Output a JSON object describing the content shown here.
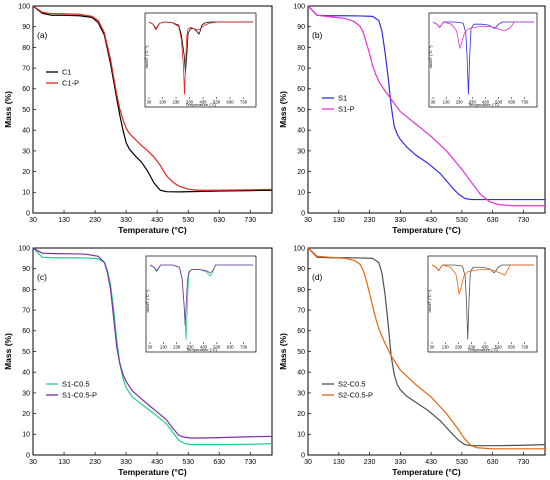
{
  "chart_data": [
    {
      "type": "line",
      "panel_label": "(a)",
      "xlabel": "Temperature (°C)",
      "ylabel": "Mass (%)",
      "xlim": [
        30,
        800
      ],
      "ylim": [
        0,
        100
      ],
      "xticks": [
        30,
        130,
        230,
        330,
        430,
        530,
        630,
        730
      ],
      "yticks": [
        0,
        10,
        20,
        30,
        40,
        50,
        60,
        70,
        80,
        90,
        100
      ],
      "legend_position": "center-left",
      "series": [
        {
          "name": "C1",
          "color": "#000000",
          "x": [
            30,
            60,
            90,
            130,
            180,
            220,
            240,
            260,
            280,
            300,
            310,
            320,
            330,
            340,
            360,
            380,
            400,
            420,
            440,
            460,
            500,
            560,
            630,
            730,
            800
          ],
          "y": [
            100,
            96.5,
            95.5,
            95.5,
            95.3,
            94.5,
            92,
            86,
            72,
            55,
            47,
            40,
            34,
            31,
            27.5,
            24.5,
            20,
            14.5,
            11,
            10.3,
            10.2,
            10.4,
            10.6,
            10.8,
            11
          ]
        },
        {
          "name": "C1-P",
          "color": "#e8231c",
          "x": [
            30,
            60,
            90,
            130,
            180,
            220,
            240,
            260,
            280,
            300,
            310,
            320,
            330,
            340,
            360,
            380,
            400,
            420,
            440,
            460,
            480,
            500,
            530,
            560,
            630,
            730,
            800
          ],
          "y": [
            100,
            97,
            96.3,
            96.2,
            96,
            95,
            93,
            87,
            74,
            57,
            50,
            45,
            41,
            38.5,
            35.5,
            32.5,
            30,
            27,
            23,
            18,
            15,
            13,
            11.5,
            11,
            11,
            11.2,
            11.4
          ]
        }
      ],
      "inset": {
        "xlabel": "Temperature (°C)",
        "ylabel": "dm/dT (°C⁻¹)",
        "xlim": [
          30,
          800
        ],
        "xticks": [
          30,
          130,
          230,
          330,
          430,
          530,
          630,
          730
        ],
        "series": [
          {
            "name": "C1",
            "color": "#000000",
            "x": [
              30,
              60,
              80,
              110,
              150,
              200,
              250,
              270,
              290,
              300,
              310,
              320,
              340,
              360,
              380,
              400,
              410,
              420,
              440,
              480,
              560,
              800
            ],
            "y": [
              0,
              -0.1,
              -0.3,
              -0.05,
              0,
              -0.03,
              -0.15,
              -0.6,
              -1.5,
              -2.3,
              -1.5,
              -0.5,
              -0.3,
              -0.3,
              -0.4,
              -0.55,
              -0.4,
              -0.15,
              -0.05,
              0,
              0,
              0
            ]
          },
          {
            "name": "C1-P",
            "color": "#e8231c",
            "x": [
              30,
              60,
              80,
              110,
              150,
              200,
              250,
              270,
              285,
              293,
              300,
              310,
              320,
              340,
              360,
              380,
              400,
              420,
              440,
              480,
              540,
              800
            ],
            "y": [
              0,
              -0.1,
              -0.35,
              -0.05,
              0,
              -0.03,
              -0.2,
              -0.8,
              -2.0,
              -3.3,
              -2.0,
              -0.6,
              -0.3,
              -0.25,
              -0.3,
              -0.35,
              -0.35,
              -0.25,
              -0.15,
              -0.05,
              0,
              0
            ]
          }
        ]
      }
    },
    {
      "type": "line",
      "panel_label": "(b)",
      "xlabel": "Temperature (°C)",
      "ylabel": "Mass (%)",
      "xlim": [
        30,
        800
      ],
      "ylim": [
        0,
        100
      ],
      "xticks": [
        30,
        130,
        230,
        330,
        430,
        530,
        630,
        730
      ],
      "yticks": [
        0,
        10,
        20,
        30,
        40,
        50,
        60,
        70,
        80,
        90,
        100
      ],
      "legend_position": "center-left",
      "series": [
        {
          "name": "S1",
          "color": "#2e2ee6",
          "x": [
            30,
            60,
            100,
            150,
            200,
            240,
            260,
            270,
            280,
            290,
            300,
            310,
            320,
            330,
            350,
            380,
            420,
            460,
            500,
            520,
            540,
            560,
            580,
            630,
            730,
            800
          ],
          "y": [
            100,
            95.5,
            95.3,
            95.3,
            95.2,
            95,
            93,
            88,
            78,
            66,
            52,
            42,
            38,
            35.5,
            32,
            28,
            24,
            19,
            12,
            9,
            7,
            6.5,
            6.5,
            6.5,
            6.5,
            6.5
          ]
        },
        {
          "name": "S1-P",
          "color": "#e632d6",
          "x": [
            30,
            60,
            100,
            150,
            180,
            200,
            210,
            220,
            230,
            240,
            250,
            260,
            280,
            300,
            330,
            380,
            430,
            480,
            530,
            560,
            590,
            620,
            650,
            700,
            730,
            800
          ],
          "y": [
            100,
            95.5,
            94.8,
            94,
            92.5,
            90,
            87,
            82,
            77,
            71,
            67,
            63.5,
            59,
            55,
            49,
            43,
            37,
            30,
            21,
            15,
            9,
            5.5,
            4,
            3.5,
            3.5,
            3.5
          ]
        }
      ],
      "inset": {
        "xlabel": "Temperature (°C)",
        "ylabel": "dm/dT (°C⁻¹)",
        "xlim": [
          30,
          800
        ],
        "xticks": [
          30,
          130,
          230,
          330,
          430,
          530,
          630,
          730
        ],
        "series": [
          {
            "name": "S1",
            "color": "#2e2ee6",
            "x": [
              30,
              60,
              80,
              110,
              200,
              260,
              280,
              290,
              300,
              310,
              320,
              340,
              400,
              460,
              500,
              530,
              560,
              800
            ],
            "y": [
              0,
              -0.1,
              -0.25,
              0,
              0,
              -0.05,
              -0.5,
              -1.6,
              -3.3,
              -1.5,
              -0.3,
              -0.1,
              -0.1,
              -0.15,
              -0.3,
              -0.1,
              0,
              0
            ]
          },
          {
            "name": "S1-P",
            "color": "#e632d6",
            "x": [
              30,
              60,
              80,
              110,
              170,
              210,
              225,
              235,
              250,
              270,
              300,
              340,
              400,
              460,
              500,
              540,
              580,
              620,
              650,
              800
            ],
            "y": [
              0,
              -0.1,
              -0.25,
              0,
              -0.1,
              -0.4,
              -0.9,
              -1.2,
              -0.9,
              -0.5,
              -0.3,
              -0.25,
              -0.2,
              -0.2,
              -0.25,
              -0.35,
              -0.4,
              -0.25,
              0,
              0
            ]
          }
        ]
      }
    },
    {
      "type": "line",
      "panel_label": "(c)",
      "xlabel": "Temperature (°C)",
      "ylabel": "Mass (%)",
      "xlim": [
        30,
        800
      ],
      "ylim": [
        0,
        100
      ],
      "xticks": [
        30,
        130,
        230,
        330,
        430,
        530,
        630,
        730
      ],
      "yticks": [
        0,
        10,
        20,
        30,
        40,
        50,
        60,
        70,
        80,
        90,
        100
      ],
      "legend_position": "lower-left",
      "series": [
        {
          "name": "S1-C0.5",
          "color": "#1fcf85",
          "x": [
            30,
            60,
            100,
            150,
            200,
            240,
            260,
            270,
            280,
            290,
            300,
            310,
            320,
            330,
            350,
            380,
            420,
            460,
            480,
            500,
            520,
            540,
            580,
            630,
            730,
            800
          ],
          "y": [
            100,
            95.5,
            95.3,
            95.3,
            95.2,
            94.8,
            93,
            89,
            82,
            70,
            55,
            44,
            37,
            32.5,
            28,
            24.5,
            20,
            15,
            11,
            7,
            5.5,
            5,
            5,
            5,
            5.2,
            5.5
          ]
        },
        {
          "name": "S1-C0.5-P",
          "color": "#7b2fa8",
          "x": [
            30,
            60,
            100,
            150,
            200,
            240,
            260,
            270,
            280,
            290,
            300,
            310,
            320,
            330,
            350,
            380,
            420,
            460,
            480,
            500,
            520,
            540,
            580,
            630,
            730,
            800
          ],
          "y": [
            100,
            97.5,
            97.3,
            97.2,
            97,
            96,
            93,
            88,
            80,
            66,
            52,
            44,
            39,
            35.5,
            31,
            27,
            22,
            17,
            13,
            9.5,
            8.5,
            8.2,
            8.2,
            8.4,
            8.8,
            9
          ]
        }
      ],
      "inset": {
        "xlabel": "Temperature (°C)",
        "ylabel": "dm/dT (°C⁻¹)",
        "xlim": [
          30,
          800
        ],
        "xticks": [
          30,
          130,
          230,
          330,
          430,
          530,
          630,
          730
        ],
        "series": [
          {
            "name": "S1-C0.5",
            "color": "#1fcf85",
            "x": [
              30,
              60,
              80,
              110,
              200,
              250,
              270,
              285,
              300,
              310,
              320,
              340,
              400,
              450,
              480,
              500,
              520,
              800
            ],
            "y": [
              0,
              -0.1,
              -0.3,
              0,
              0,
              -0.1,
              -0.6,
              -1.8,
              -3.3,
              -1.6,
              -0.4,
              -0.2,
              -0.2,
              -0.3,
              -0.5,
              -0.3,
              0,
              0
            ]
          },
          {
            "name": "S1-C0.5-P",
            "color": "#7b2fa8",
            "x": [
              30,
              60,
              80,
              110,
              200,
              250,
              270,
              285,
              293,
              300,
              310,
              320,
              340,
              400,
              450,
              480,
              500,
              520,
              800
            ],
            "y": [
              0,
              -0.1,
              -0.25,
              0,
              0,
              -0.1,
              -0.6,
              -1.8,
              -2.7,
              -1.8,
              -0.7,
              -0.3,
              -0.2,
              -0.2,
              -0.25,
              -0.35,
              -0.25,
              0,
              0
            ]
          }
        ]
      }
    },
    {
      "type": "line",
      "panel_label": "(d)",
      "xlabel": "Temperature (°C)",
      "ylabel": "Mass (%)",
      "xlim": [
        30,
        800
      ],
      "ylim": [
        0,
        100
      ],
      "xticks": [
        30,
        130,
        230,
        330,
        430,
        530,
        630,
        730
      ],
      "yticks": [
        0,
        10,
        20,
        30,
        40,
        50,
        60,
        70,
        80,
        90,
        100
      ],
      "legend_position": "lower-left",
      "series": [
        {
          "name": "S2-C0.5",
          "color": "#505050",
          "x": [
            30,
            60,
            100,
            150,
            200,
            240,
            260,
            270,
            280,
            290,
            300,
            310,
            320,
            330,
            350,
            380,
            420,
            460,
            500,
            520,
            540,
            560,
            580,
            630,
            730,
            800
          ],
          "y": [
            100,
            95.5,
            95.3,
            95.3,
            95.2,
            95,
            93,
            88,
            78,
            64,
            48,
            39,
            34,
            31.5,
            28.5,
            25.5,
            21.5,
            16.5,
            10,
            7,
            5,
            4.5,
            4.5,
            4.5,
            4.7,
            5
          ]
        },
        {
          "name": "S2-C0.5-P",
          "color": "#e8650f",
          "x": [
            30,
            60,
            100,
            150,
            180,
            200,
            210,
            220,
            230,
            240,
            250,
            260,
            280,
            300,
            330,
            380,
            430,
            480,
            520,
            540,
            560,
            580,
            630,
            730,
            800
          ],
          "y": [
            100,
            96,
            95.5,
            95,
            94,
            92,
            89,
            84,
            78,
            72,
            66,
            61,
            54,
            48,
            41,
            34,
            28,
            20,
            12,
            7.5,
            4.5,
            3.5,
            3,
            3,
            3
          ]
        }
      ],
      "inset": {
        "xlabel": "Temperature (°C)",
        "ylabel": "dm/dT (°C⁻¹)",
        "xlim": [
          30,
          800
        ],
        "xticks": [
          30,
          130,
          230,
          330,
          430,
          530,
          630,
          730
        ],
        "series": [
          {
            "name": "S2-C0.5",
            "color": "#505050",
            "x": [
              30,
              60,
              80,
              110,
              200,
              260,
              280,
              290,
              300,
              310,
              320,
              340,
              400,
              460,
              500,
              530,
              560,
              800
            ],
            "y": [
              0,
              -0.1,
              -0.25,
              0,
              0,
              -0.05,
              -0.5,
              -1.6,
              -3.3,
              -1.5,
              -0.3,
              -0.1,
              -0.1,
              -0.15,
              -0.35,
              -0.1,
              0,
              0
            ]
          },
          {
            "name": "S2-C0.5-P",
            "color": "#e8650f",
            "x": [
              30,
              60,
              80,
              110,
              170,
              210,
              225,
              235,
              250,
              270,
              300,
              340,
              400,
              460,
              500,
              540,
              580,
              620,
              800
            ],
            "y": [
              0,
              -0.1,
              -0.25,
              0,
              -0.1,
              -0.4,
              -0.9,
              -1.3,
              -1.0,
              -0.5,
              -0.3,
              -0.25,
              -0.2,
              -0.2,
              -0.25,
              -0.35,
              -0.45,
              0,
              0
            ]
          }
        ]
      }
    }
  ]
}
